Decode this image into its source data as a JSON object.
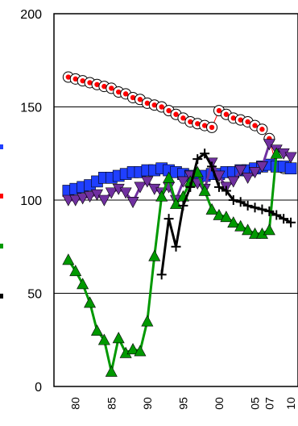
{
  "chart_data": {
    "type": "line",
    "ylim": [
      0,
      200
    ],
    "yticks": [
      0,
      50,
      100,
      150,
      200
    ],
    "xlim": [
      1977,
      2011
    ],
    "xticks": [
      "80",
      "85",
      "90",
      "95",
      "00",
      "05",
      "07",
      "10"
    ],
    "xtick_values": [
      1980,
      1985,
      1990,
      1995,
      2000,
      2005,
      2007,
      2010
    ],
    "grid": "horizontal",
    "legend_markers": [
      {
        "color": "#1f3fff"
      },
      {
        "color": "#ff0000"
      },
      {
        "color": "#009900"
      },
      {
        "color": "#000000"
      }
    ],
    "series": [
      {
        "marker": "circle",
        "color": "#ff0000",
        "x": [
          1979,
          1980,
          1981,
          1982,
          1983,
          1984,
          1985,
          1986,
          1987,
          1988,
          1989,
          1990,
          1991,
          1992,
          1993,
          1994,
          1995,
          1996,
          1997,
          1998,
          1999,
          2000,
          2001,
          2002,
          2003,
          2004,
          2005,
          2006,
          2007,
          2008,
          2009,
          2010
        ],
        "y": [
          166,
          165,
          164,
          163,
          162,
          161,
          160,
          158,
          157,
          155,
          154,
          152,
          151,
          150,
          148,
          146,
          144,
          142,
          141,
          140,
          139,
          148,
          146,
          144,
          143,
          142,
          140,
          138,
          133,
          118,
          117,
          117
        ]
      },
      {
        "marker": "square",
        "color": "#1f3fff",
        "x": [
          1979,
          1980,
          1981,
          1982,
          1983,
          1984,
          1985,
          1986,
          1987,
          1988,
          1989,
          1990,
          1991,
          1992,
          1993,
          1994,
          1995,
          1996,
          1997,
          1998,
          1999,
          2000,
          2001,
          2002,
          2003,
          2004,
          2005,
          2006,
          2007,
          2008,
          2009,
          2010
        ],
        "y": [
          105,
          106,
          107,
          108,
          110,
          112,
          112,
          113,
          114,
          115,
          115,
          116,
          116,
          117,
          116,
          115,
          114,
          113,
          112,
          113,
          114,
          114,
          115,
          115,
          116,
          116,
          117,
          118,
          119,
          118,
          118,
          117
        ]
      },
      {
        "marker": "triangle-down",
        "color": "#7030a0",
        "x": [
          1979,
          1980,
          1981,
          1982,
          1983,
          1984,
          1985,
          1986,
          1987,
          1988,
          1989,
          1990,
          1991,
          1992,
          1993,
          1994,
          1995,
          1996,
          1997,
          1998,
          1999,
          2000,
          2001,
          2002,
          2003,
          2004,
          2005,
          2006,
          2007,
          2008,
          2009,
          2010
        ],
        "y": [
          100,
          100,
          101,
          102,
          103,
          100,
          104,
          106,
          104,
          99,
          107,
          110,
          106,
          104,
          107,
          100,
          110,
          113,
          109,
          106,
          120,
          113,
          107,
          110,
          116,
          112,
          115,
          118,
          130,
          127,
          125,
          123
        ]
      },
      {
        "marker": "triangle-up",
        "color": "#009900",
        "x": [
          1979,
          1980,
          1981,
          1982,
          1983,
          1984,
          1985,
          1986,
          1987,
          1988,
          1989,
          1990,
          1991,
          1992,
          1993,
          1994,
          1995,
          1996,
          1997,
          1998,
          1999,
          2000,
          2001,
          2002,
          2003,
          2004,
          2005,
          2006,
          2007,
          2008
        ],
        "y": [
          68,
          62,
          55,
          45,
          30,
          25,
          8,
          26,
          18,
          20,
          19,
          35,
          70,
          102,
          112,
          98,
          102,
          110,
          115,
          105,
          95,
          92,
          91,
          88,
          86,
          84,
          82,
          82,
          84,
          125
        ]
      },
      {
        "marker": "plus",
        "color": "#000000",
        "x": [
          1992,
          1993,
          1994,
          1995,
          1996,
          1997,
          1998,
          1999,
          2000,
          2001,
          2002,
          2003,
          2004,
          2005,
          2006,
          2007,
          2008,
          2009,
          2010
        ],
        "y": [
          60,
          90,
          75,
          97,
          107,
          122,
          125,
          118,
          107,
          105,
          100,
          99,
          97,
          96,
          95,
          94,
          92,
          90,
          88
        ]
      }
    ]
  }
}
